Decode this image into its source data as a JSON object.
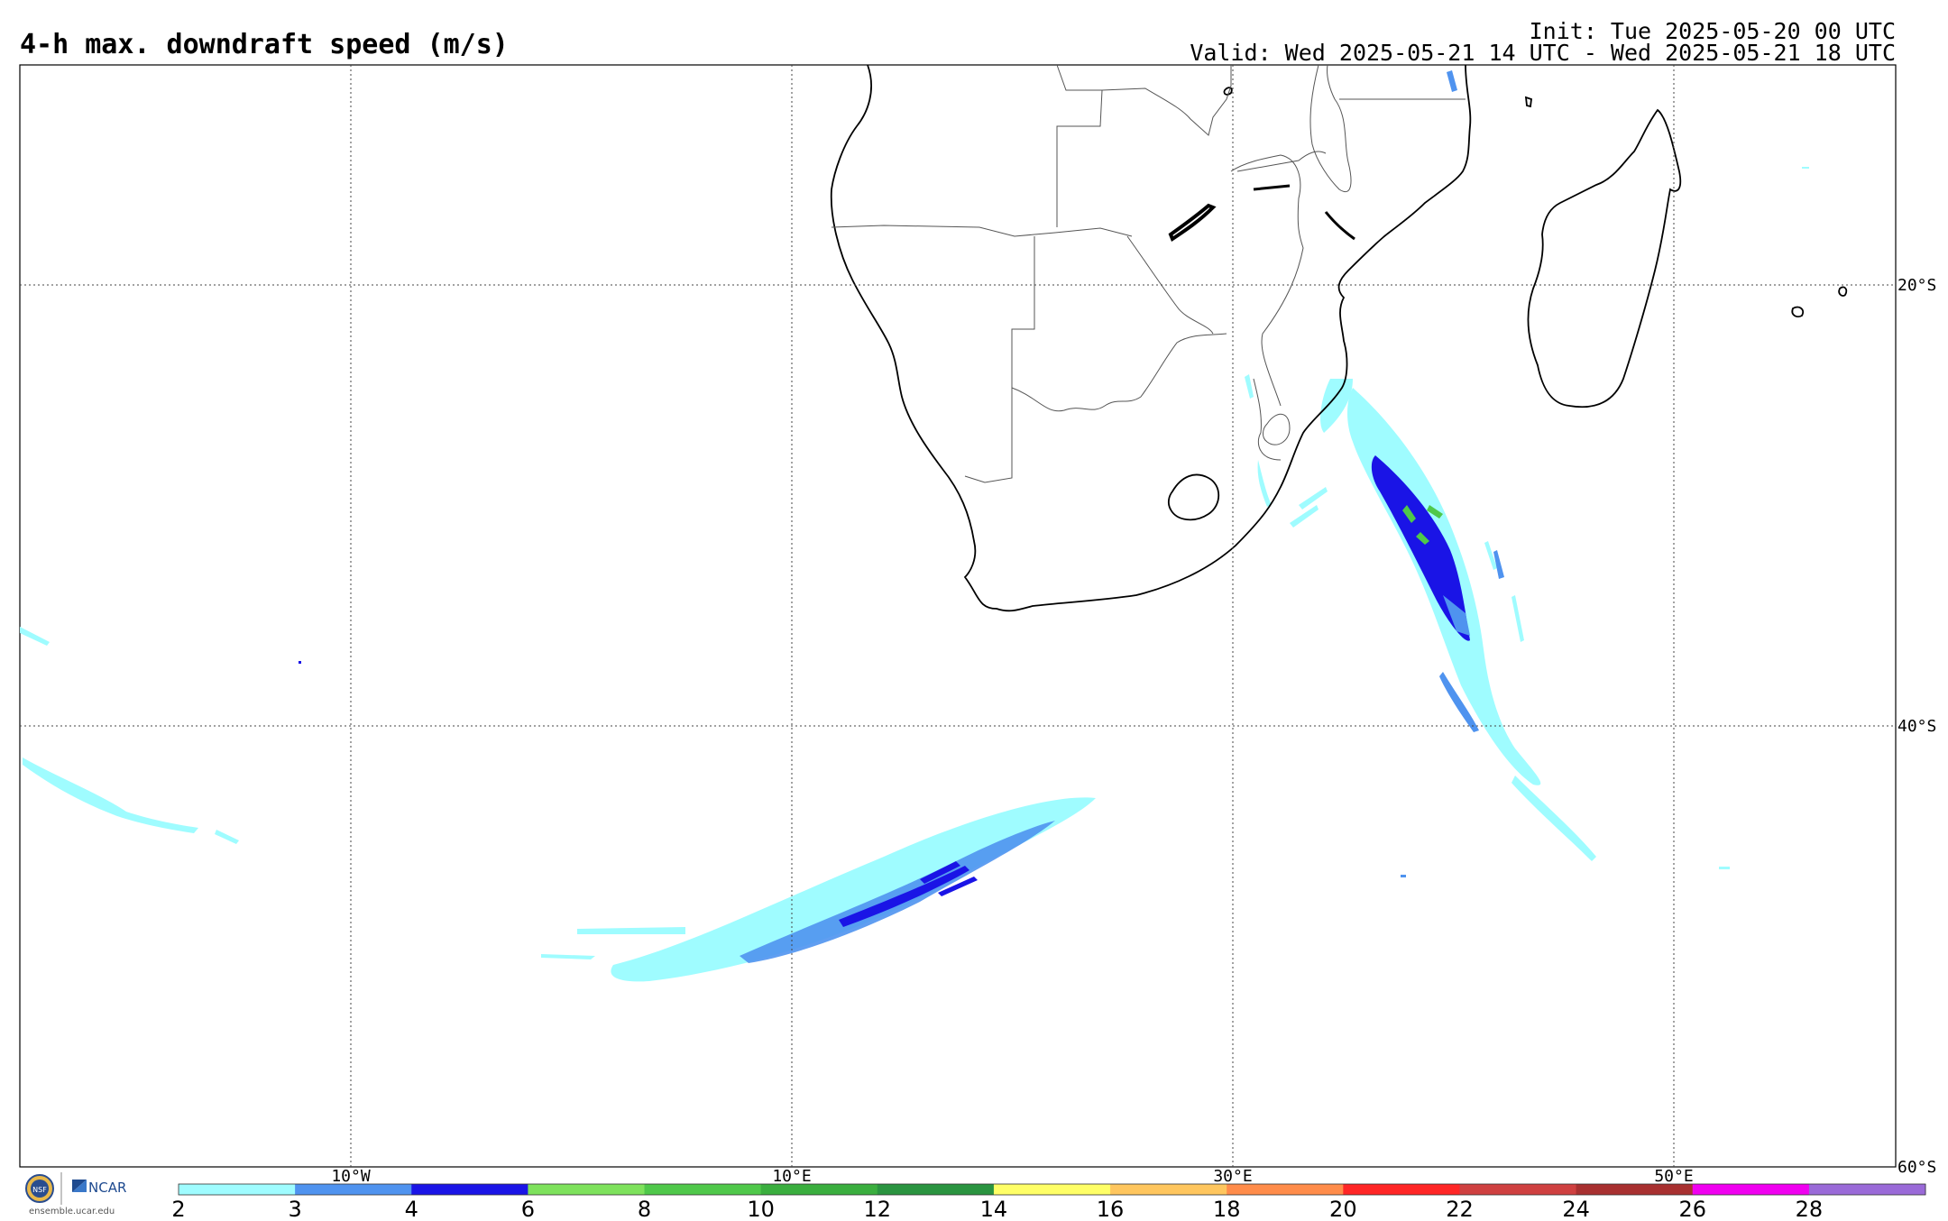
{
  "header": {
    "title": "4-h max. downdraft speed (m/s)",
    "init": "Init: Tue 2025-05-20 00 UTC",
    "valid": "Valid: Wed 2025-05-21 14 UTC - Wed 2025-05-21 18 UTC"
  },
  "map": {
    "lon_labels": [
      "10°W",
      "10°E",
      "30°E",
      "50°E"
    ],
    "lat_labels": [
      "20°S",
      "40°S",
      "60°S"
    ],
    "grid": "dotted"
  },
  "colorbar": {
    "tick_labels": [
      "2",
      "3",
      "4",
      "6",
      "8",
      "10",
      "12",
      "14",
      "16",
      "18",
      "20",
      "22",
      "24",
      "26",
      "28"
    ],
    "colors": [
      "#9ffcff",
      "#4f93ef",
      "#1a14e6",
      "#7ee25c",
      "#4fc84a",
      "#3aae3e",
      "#2a9440",
      "#ffff66",
      "#ffc65e",
      "#ff8c4a",
      "#ff2626",
      "#cf4040",
      "#a83030",
      "#f000f0",
      "#9a6ad8"
    ]
  },
  "logo": {
    "nsf_text": "NSF",
    "ncar_text": "NCAR",
    "url": "ensemble.ucar.edu"
  }
}
